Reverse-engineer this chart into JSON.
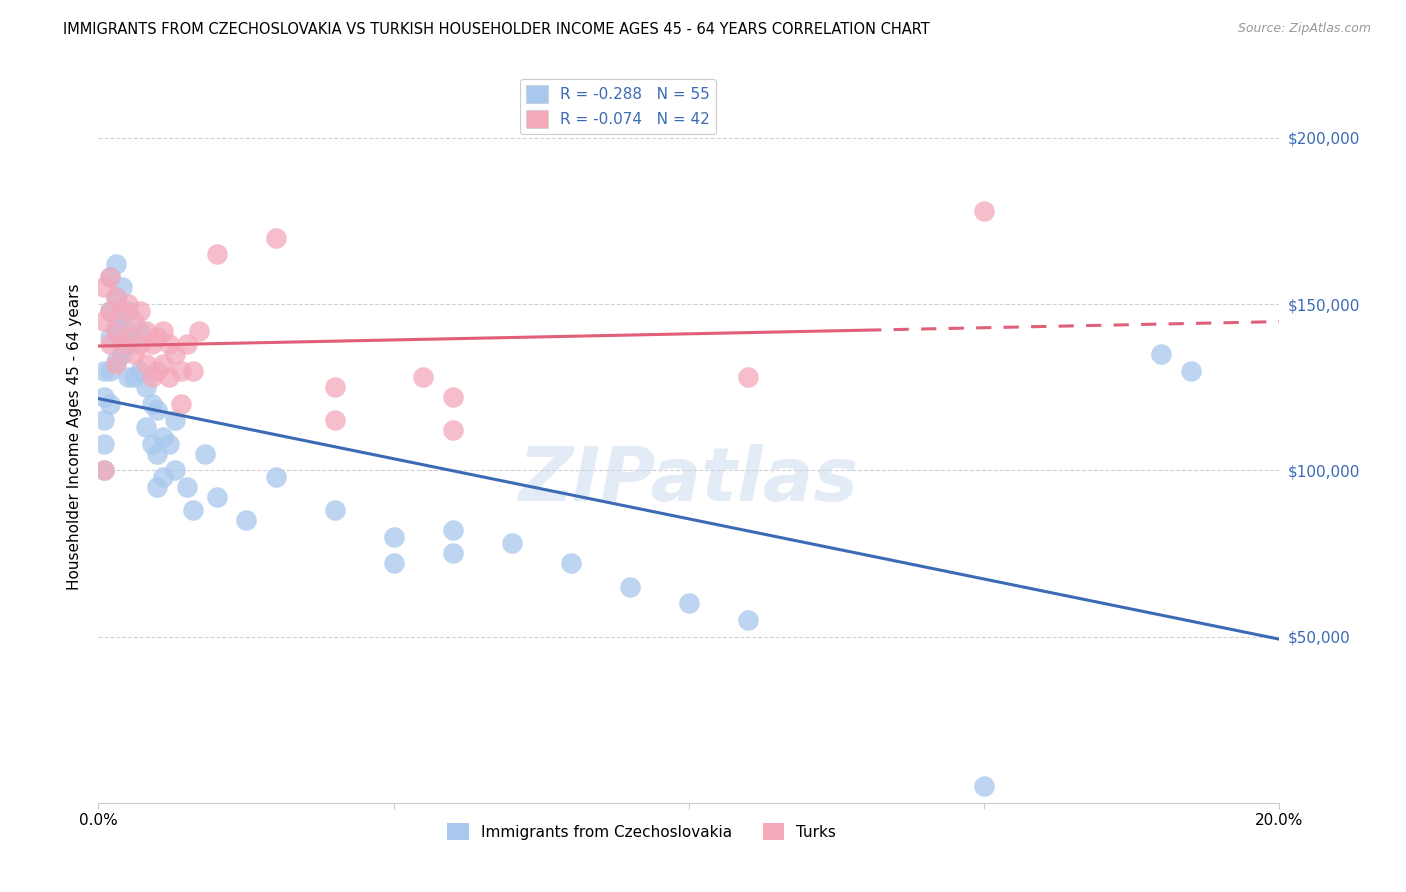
{
  "title": "IMMIGRANTS FROM CZECHOSLOVAKIA VS TURKISH HOUSEHOLDER INCOME AGES 45 - 64 YEARS CORRELATION CHART",
  "source": "Source: ZipAtlas.com",
  "ylabel": "Householder Income Ages 45 - 64 years",
  "xlim": [
    0.0,
    0.2
  ],
  "ylim": [
    0,
    220000
  ],
  "yticks": [
    50000,
    100000,
    150000,
    200000
  ],
  "ytick_labels": [
    "$50,000",
    "$100,000",
    "$150,000",
    "$200,000"
  ],
  "xticks": [
    0.0,
    0.05,
    0.1,
    0.15,
    0.2
  ],
  "xtick_labels": [
    "0.0%",
    "",
    "",
    "",
    "20.0%"
  ],
  "r1": -0.288,
  "n1": 55,
  "r2": -0.074,
  "n2": 42,
  "color_czech": "#A8C8ED",
  "color_turk": "#F4A8BA",
  "line_color_czech": "#3C6BB5",
  "line_color_turk": "#E0607A",
  "background_color": "#FFFFFF",
  "watermark": "ZIPatlas",
  "czech_x": [
    0.001,
    0.001,
    0.001,
    0.001,
    0.001,
    0.002,
    0.002,
    0.002,
    0.002,
    0.002,
    0.003,
    0.003,
    0.003,
    0.003,
    0.004,
    0.004,
    0.004,
    0.005,
    0.005,
    0.005,
    0.006,
    0.006,
    0.007,
    0.007,
    0.008,
    0.008,
    0.009,
    0.009,
    0.01,
    0.01,
    0.01,
    0.011,
    0.011,
    0.012,
    0.013,
    0.013,
    0.015,
    0.016,
    0.018,
    0.02,
    0.025,
    0.03,
    0.04,
    0.05,
    0.05,
    0.06,
    0.06,
    0.07,
    0.08,
    0.09,
    0.1,
    0.11,
    0.15,
    0.18,
    0.185
  ],
  "czech_y": [
    130000,
    122000,
    115000,
    108000,
    100000,
    158000,
    148000,
    140000,
    130000,
    120000,
    162000,
    152000,
    143000,
    133000,
    155000,
    145000,
    135000,
    148000,
    138000,
    128000,
    140000,
    128000,
    142000,
    130000,
    125000,
    113000,
    120000,
    108000,
    118000,
    105000,
    95000,
    110000,
    98000,
    108000,
    115000,
    100000,
    95000,
    88000,
    105000,
    92000,
    85000,
    98000,
    88000,
    80000,
    72000,
    82000,
    75000,
    78000,
    72000,
    65000,
    60000,
    55000,
    5000,
    135000,
    130000
  ],
  "turk_x": [
    0.001,
    0.001,
    0.001,
    0.002,
    0.002,
    0.002,
    0.003,
    0.003,
    0.003,
    0.004,
    0.004,
    0.005,
    0.005,
    0.006,
    0.006,
    0.007,
    0.007,
    0.008,
    0.008,
    0.009,
    0.009,
    0.01,
    0.01,
    0.011,
    0.011,
    0.012,
    0.012,
    0.013,
    0.014,
    0.014,
    0.015,
    0.016,
    0.017,
    0.02,
    0.03,
    0.04,
    0.04,
    0.055,
    0.06,
    0.06,
    0.11,
    0.15
  ],
  "turk_y": [
    155000,
    145000,
    100000,
    158000,
    148000,
    138000,
    152000,
    142000,
    132000,
    148000,
    138000,
    150000,
    140000,
    145000,
    135000,
    148000,
    138000,
    142000,
    132000,
    138000,
    128000,
    140000,
    130000,
    142000,
    132000,
    138000,
    128000,
    135000,
    130000,
    120000,
    138000,
    130000,
    142000,
    165000,
    170000,
    125000,
    115000,
    128000,
    122000,
    112000,
    128000,
    178000
  ]
}
